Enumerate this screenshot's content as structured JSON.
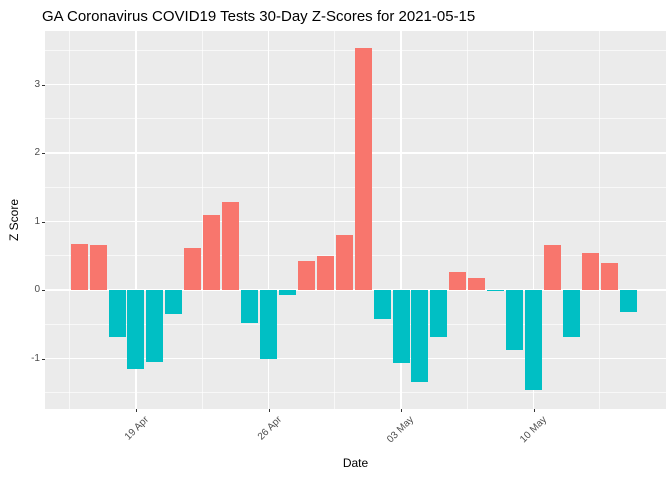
{
  "title": "GA Coronavirus COVID19 Tests 30-Day Z-Scores for 2021-05-15",
  "chart_data": {
    "type": "bar",
    "title": "GA Coronavirus COVID19 Tests 30-Day Z-Scores for 2021-05-15",
    "xlabel": "Date",
    "ylabel": "Z Score",
    "x": [
      "2021-04-16",
      "2021-04-17",
      "2021-04-18",
      "2021-04-19",
      "2021-04-20",
      "2021-04-21",
      "2021-04-22",
      "2021-04-23",
      "2021-04-24",
      "2021-04-25",
      "2021-04-26",
      "2021-04-27",
      "2021-04-28",
      "2021-04-29",
      "2021-04-30",
      "2021-05-01",
      "2021-05-02",
      "2021-05-03",
      "2021-05-04",
      "2021-05-05",
      "2021-05-06",
      "2021-05-07",
      "2021-05-08",
      "2021-05-09",
      "2021-05-10",
      "2021-05-11",
      "2021-05-12",
      "2021-05-13",
      "2021-05-14",
      "2021-05-15"
    ],
    "values": [
      0.67,
      0.66,
      -0.69,
      -1.16,
      -1.05,
      -0.35,
      0.61,
      1.09,
      1.29,
      -0.48,
      -1.0,
      -0.08,
      0.42,
      0.49,
      0.8,
      3.53,
      -0.43,
      -1.07,
      -1.34,
      -0.68,
      0.27,
      0.18,
      -0.02,
      -0.87,
      -1.46,
      0.65,
      -0.68,
      0.54,
      0.39,
      -0.32
    ],
    "x_tick_dates": [
      "2021-04-19",
      "2021-04-26",
      "2021-05-03",
      "2021-05-10"
    ],
    "x_tick_labels": [
      "19 Apr",
      "26 Apr",
      "03 May",
      "10 May"
    ],
    "y_ticks": [
      -1,
      0,
      1,
      2,
      3
    ],
    "y_minor_ticks": [
      -1.5,
      -0.5,
      0.5,
      1.5,
      2.5,
      3.5
    ],
    "ylim": [
      -1.73,
      3.79
    ],
    "grid": true,
    "legend_position": "none",
    "colors": {
      "positive_bar": "#F8766D",
      "negative_bar": "#00BFC4",
      "panel_background": "#EBEBEB",
      "gridline": "#FFFFFF",
      "tick_label": "#4D4D4D",
      "title_text": "#000000"
    }
  }
}
